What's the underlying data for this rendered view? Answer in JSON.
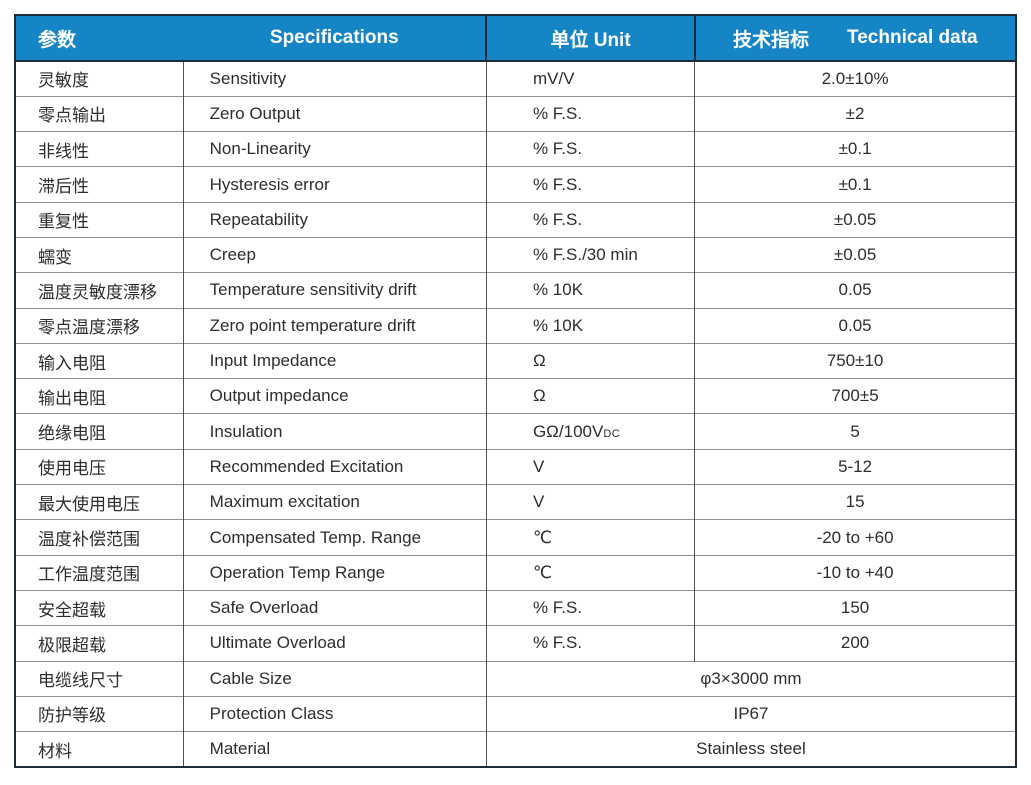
{
  "header": {
    "col1": "参数",
    "col2": "Specifications",
    "col3": "单位 Unit",
    "col4_zh": "技术指标",
    "col4_en": "Technical data"
  },
  "colors": {
    "header_bg": "#1585c6",
    "header_text": "#ffffff",
    "border_dark": "#1e2a38",
    "grid_h": "#8f8f8f",
    "grid_v": "#4f4f4f",
    "text": "#2d2d2d"
  },
  "rows": [
    {
      "param_zh": "灵敏度",
      "spec_en": "Sensitivity",
      "unit": "mV/V",
      "value": "2.0±10%"
    },
    {
      "param_zh": "零点输出",
      "spec_en": "Zero Output",
      "unit": "% F.S.",
      "value": "±2"
    },
    {
      "param_zh": "非线性",
      "spec_en": "Non-Linearity",
      "unit": "% F.S.",
      "value": "±0.1"
    },
    {
      "param_zh": "滞后性",
      "spec_en": "Hysteresis error",
      "unit": "% F.S.",
      "value": "±0.1"
    },
    {
      "param_zh": "重复性",
      "spec_en": "Repeatability",
      "unit": "% F.S.",
      "value": "±0.05"
    },
    {
      "param_zh": "蠕变",
      "spec_en": "Creep",
      "unit": "% F.S./30 min",
      "value": "±0.05"
    },
    {
      "param_zh": "温度灵敏度漂移",
      "spec_en": "Temperature sensitivity drift",
      "unit": "% 10K",
      "value": "0.05"
    },
    {
      "param_zh": "零点温度漂移",
      "spec_en": "Zero point temperature drift",
      "unit": "% 10K",
      "value": "0.05"
    },
    {
      "param_zh": "输入电阻",
      "spec_en": "Input Impedance",
      "unit": "Ω",
      "value": "750±10"
    },
    {
      "param_zh": "输出电阻",
      "spec_en": "Output impedance",
      "unit": "Ω",
      "value": "700±5"
    },
    {
      "param_zh": "绝缘电阻",
      "spec_en": "Insulation",
      "unit": "GΩ/100V",
      "unit_sub": "DC",
      "value": "5"
    },
    {
      "param_zh": "使用电压",
      "spec_en": "Recommended Excitation",
      "unit": "V",
      "value": "5-12"
    },
    {
      "param_zh": "最大使用电压",
      "spec_en": "Maximum excitation",
      "unit": "V",
      "value": "15"
    },
    {
      "param_zh": "温度补偿范围",
      "spec_en": "Compensated Temp. Range",
      "unit": "℃",
      "value": "-20 to +60"
    },
    {
      "param_zh": "工作温度范围",
      "spec_en": "Operation Temp Range",
      "unit": "℃",
      "value": "-10 to +40"
    },
    {
      "param_zh": "安全超载",
      "spec_en": "Safe Overload",
      "unit": "% F.S.",
      "value": "150"
    },
    {
      "param_zh": "极限超载",
      "spec_en": "Ultimate Overload",
      "unit": "% F.S.",
      "value": "200"
    },
    {
      "param_zh": "电缆线尺寸",
      "spec_en": "Cable Size",
      "merged": true,
      "value": "φ3×3000 mm"
    },
    {
      "param_zh": "防护等级",
      "spec_en": "Protection Class",
      "merged": true,
      "value": "IP67"
    },
    {
      "param_zh": "材料",
      "spec_en": "Material",
      "merged": true,
      "value": "Stainless steel"
    }
  ]
}
